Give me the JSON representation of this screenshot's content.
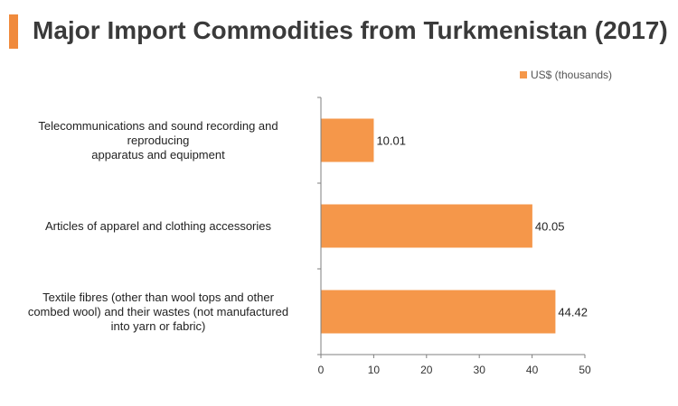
{
  "header": {
    "title": "Major Import Commodities from Turkmenistan (2017)"
  },
  "colors": {
    "accent": "#f08a3c",
    "bar": "#f5974a",
    "axis": "#7f7f7f"
  },
  "chart_data": {
    "type": "bar",
    "orientation": "horizontal",
    "title": "Major Import Commodities from Turkmenistan (2017)",
    "categories": [
      "Telecommunications and sound recording and reproducing apparatus and equipment",
      "Articles of apparel and clothing accessories",
      "Textile fibres (other than wool tops and other combed wool) and their wastes (not manufactured into yarn or fabric)"
    ],
    "category_lines": [
      [
        "Telecommunications and sound recording and",
        "reproducing",
        "apparatus and equipment"
      ],
      [
        "Articles of apparel and clothing accessories"
      ],
      [
        "Textile fibres (other than wool tops and other",
        "combed wool) and their wastes (not manufactured",
        "into yarn or fabric)"
      ]
    ],
    "series": [
      {
        "name": "US$ (thousands)",
        "values": [
          10.01,
          40.05,
          44.42
        ]
      }
    ],
    "data_labels": [
      "10.01",
      "40.05",
      "44.42"
    ],
    "xlim": [
      0,
      50
    ],
    "xticks": [
      "0",
      "10",
      "20",
      "30",
      "40",
      "50"
    ],
    "xlabel": "",
    "ylabel": "",
    "grid": false,
    "legend": {
      "label": "US$ (thousands)",
      "position": "top-right"
    }
  }
}
